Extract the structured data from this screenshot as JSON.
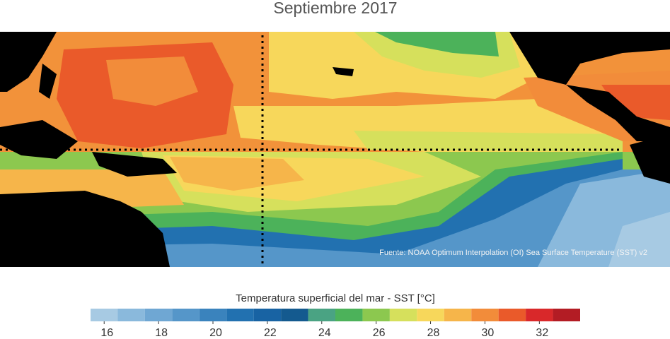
{
  "title": "Septiembre 2017",
  "source": "Fuente: NOAA Optimum Interpolation (OI) Sea Surface Temperature (SST) v2",
  "colorbar": {
    "label": "Temperatura superficial del mar - SST  [°C]",
    "lim": [
      15.5,
      33.5
    ],
    "ticks": [
      16,
      18,
      20,
      22,
      24,
      26,
      28,
      30,
      32
    ],
    "bins": [
      15.5,
      16.5,
      17.5,
      18.5,
      19.5,
      20.5,
      21.5,
      22.5,
      23.5,
      24.5,
      25.5,
      26.5,
      27.5,
      28.5,
      29.5,
      30.5,
      31.5,
      32.5,
      33.5
    ],
    "colors": [
      "#a7cae3",
      "#8ab9dc",
      "#6fa7d3",
      "#5596c9",
      "#3a83bd",
      "#2271b0",
      "#1863a3",
      "#145a8f",
      "#4aa383",
      "#4cb25a",
      "#8cc84f",
      "#d6e05c",
      "#f7d75b",
      "#f6b54a",
      "#f28c3a",
      "#ea5a2a",
      "#d9282a",
      "#b31c24"
    ]
  }
}
